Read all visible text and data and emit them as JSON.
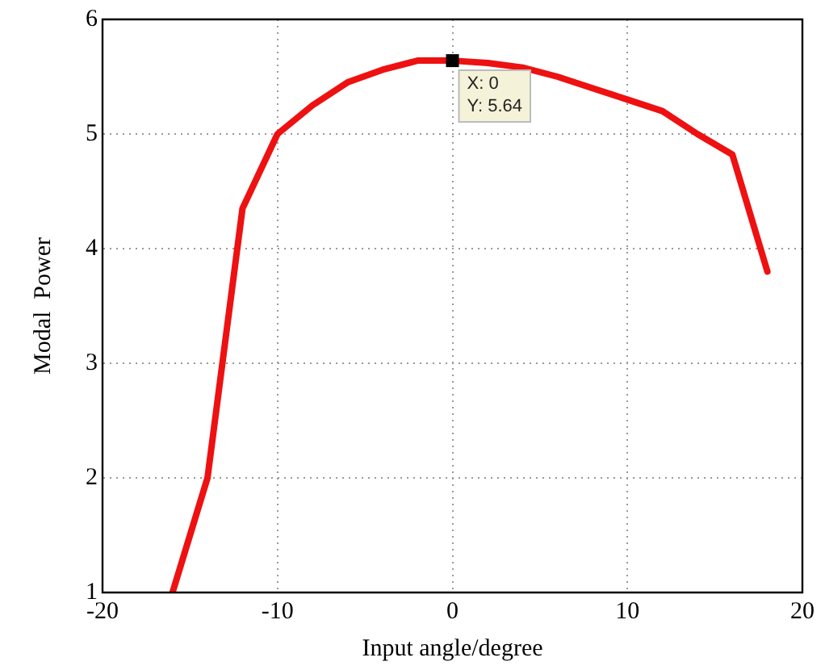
{
  "chart_data": {
    "type": "line",
    "xlabel": "Input angle/degree",
    "ylabel": "Modal  Power",
    "x": [
      -16,
      -14,
      -12,
      -10,
      -8,
      -6,
      -4,
      -2,
      0,
      2,
      4,
      6,
      8,
      10,
      12,
      14,
      16,
      18
    ],
    "series": [
      {
        "color": "#ee1111",
        "values": [
          1,
          2,
          4.35,
          5.0,
          5.25,
          5.45,
          5.56,
          5.64,
          5.64,
          5.62,
          5.58,
          5.5,
          5.4,
          5.3,
          5.2,
          5.0,
          4.82,
          3.8
        ]
      }
    ],
    "xlim": [
      -20,
      20
    ],
    "xticks": [
      -20,
      -10,
      0,
      10,
      20
    ],
    "ylim": [
      1,
      6
    ],
    "yticks": [
      1,
      2,
      3,
      4,
      5,
      6
    ],
    "grid": true,
    "legend": false,
    "marker": "none",
    "line_style": "solid",
    "annotations": [
      {
        "text": "X: 0\nY: 5.64",
        "x": 0,
        "y": 5.64
      }
    ]
  }
}
